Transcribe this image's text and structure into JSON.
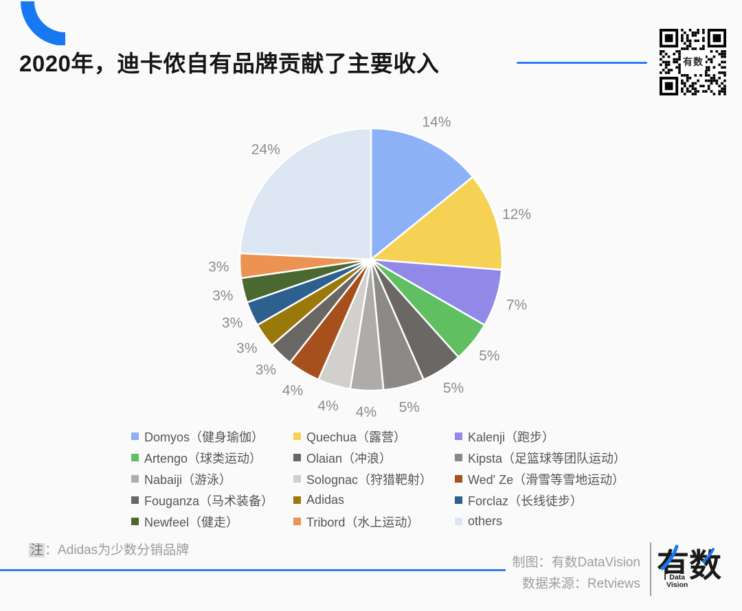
{
  "page": {
    "background": "#FAFAFA",
    "accent_blue": "#1778F2"
  },
  "header": {
    "title": "2020年，迪卡侬自有品牌贡献了主要收入",
    "qr_center_label": "有数"
  },
  "chart_data": {
    "type": "pie",
    "title": "2020年，迪卡侬自有品牌贡献了主要收入",
    "unit": "%",
    "start_angle": "12-o-clock",
    "direction": "clockwise",
    "legend_position": "bottom",
    "legend_columns": 3,
    "series": [
      {
        "name": "Domyos（健身瑜伽）",
        "value": 14,
        "label": "14%",
        "color": "#8DB1F7"
      },
      {
        "name": "Quechua（露营）",
        "value": 12,
        "label": "12%",
        "color": "#F6D254"
      },
      {
        "name": "Kalenji（跑步）",
        "value": 7,
        "label": "7%",
        "color": "#9089E8"
      },
      {
        "name": "Artengo（球类运动）",
        "value": 5,
        "label": "5%",
        "color": "#5FBF61"
      },
      {
        "name": "Olaian（冲浪）",
        "value": 5,
        "label": "5%",
        "color": "#6A6764"
      },
      {
        "name": "Kipsta（足篮球等团队运动）",
        "value": 5,
        "label": "5%",
        "color": "#8C8A87"
      },
      {
        "name": "Nabaiji（游泳）",
        "value": 4,
        "label": "4%",
        "color": "#AEACA9"
      },
      {
        "name": "Solognac（狩猎靶射）",
        "value": 4,
        "label": "4%",
        "color": "#D2D0CD"
      },
      {
        "name": "Wed' Ze（滑雪等雪地运动）",
        "value": 4,
        "label": "4%",
        "color": "#A6511D"
      },
      {
        "name": "Fouganza（马术装备）",
        "value": 3,
        "label": "3%",
        "color": "#696663"
      },
      {
        "name": "Adidas",
        "value": 3,
        "label": "3%",
        "color": "#9A790B"
      },
      {
        "name": "Forclaz（长线徒步）",
        "value": 3,
        "label": "3%",
        "color": "#2E608F"
      },
      {
        "name": "Newfeel（健走）",
        "value": 3,
        "label": "3%",
        "color": "#4A6930"
      },
      {
        "name": "Tribord（水上运动）",
        "value": 3,
        "label": "3%",
        "color": "#EC9354"
      },
      {
        "name": "others",
        "value": 24,
        "label": "24%",
        "color": "#DDE7F3"
      }
    ]
  },
  "footer": {
    "note_tag": "注",
    "note_body": "：Adidas为少数分销品牌",
    "credit_line1": "制图：有数DataVision",
    "credit_line2": "数据来源：Retviews",
    "logo_text": "有数",
    "logo_sub1": "Data",
    "logo_sub2": "Vision"
  }
}
